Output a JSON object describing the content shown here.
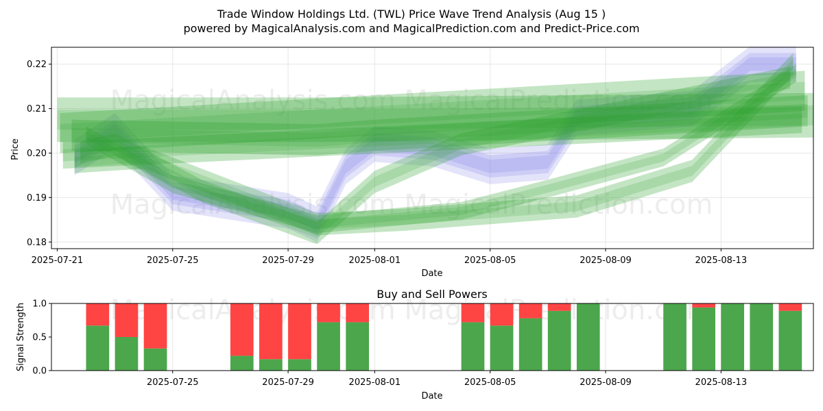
{
  "title_line1": "Trade Window Holdings Ltd. (TWL) Price Wave Trend Analysis (Aug 15 )",
  "title_line2": "powered by MagicalAnalysis.com and MagicalPrediction.com and Predict-Price.com",
  "watermark": "MagicalAnalysis.com    MagicalPrediction.com",
  "colors": {
    "price_band": "#8080e6",
    "wave": "#2ca02c",
    "buy": "#4ca64c",
    "sell": "#ff4444",
    "grid": "#e6e6e6"
  },
  "chart_data": [
    {
      "type": "area",
      "title": "",
      "xlabel": "Date",
      "ylabel": "Price",
      "ylim": [
        0.1785,
        0.2238
      ],
      "xlim_day": [
        -0.2,
        26.2
      ],
      "x_tick_labels": [
        "2025-07-21",
        "2025-07-25",
        "2025-07-29",
        "2025-08-01",
        "2025-08-05",
        "2025-08-09",
        "2025-08-13"
      ],
      "x_tick_days": [
        0,
        4,
        8,
        11,
        15,
        19,
        23
      ],
      "y_ticks": [
        0.18,
        0.19,
        0.2,
        0.21,
        0.22
      ],
      "y_tick_labels": [
        "0.18",
        "0.19",
        "0.20",
        "0.21",
        "0.22"
      ],
      "price_series": {
        "name": "Price",
        "days": [
          0.6,
          2,
          4,
          6,
          8,
          9,
          10,
          11,
          13,
          15,
          17,
          18,
          20,
          22,
          24,
          25.6
        ],
        "values": [
          0.199,
          0.205,
          0.191,
          0.189,
          0.187,
          0.184,
          0.197,
          0.202,
          0.201,
          0.197,
          0.198,
          0.208,
          0.209,
          0.21,
          0.22,
          0.22
        ]
      },
      "wave_bands": [
        {
          "x": [
            0,
            9,
            26.2
          ],
          "y": [
            0.2075,
            0.2075,
            0.2085
          ],
          "half_width": 0.005
        },
        {
          "x": [
            0.1,
            25.9
          ],
          "y": [
            0.2045,
            0.214
          ],
          "half_width": 0.0045
        },
        {
          "x": [
            0.2,
            25.8
          ],
          "y": [
            0.1995,
            0.2075
          ],
          "half_width": 0.003
        },
        {
          "x": [
            0.5,
            9,
            11,
            26
          ],
          "y": [
            0.204,
            0.203,
            0.204,
            0.2095
          ],
          "half_width": 0.0035
        },
        {
          "x": [
            1,
            4,
            9,
            14,
            17,
            21,
            25.6
          ],
          "y": [
            0.204,
            0.193,
            0.184,
            0.187,
            0.192,
            0.199,
            0.218
          ],
          "half_width": 0.002
        },
        {
          "x": [
            0.8,
            2,
            5,
            9,
            11,
            14,
            25.4
          ],
          "y": [
            0.2,
            0.202,
            0.1915,
            0.182,
            0.1935,
            0.202,
            0.217
          ],
          "half_width": 0.0025
        },
        {
          "x": [
            0.6,
            3,
            9,
            12,
            18,
            22,
            25.5
          ],
          "y": [
            0.198,
            0.199,
            0.184,
            0.185,
            0.188,
            0.196,
            0.22
          ],
          "half_width": 0.0025
        }
      ]
    },
    {
      "type": "bar",
      "title": "Buy and Sell Powers",
      "xlabel": "Date",
      "ylabel": "Signal Strength",
      "ylim": [
        0,
        1.0
      ],
      "xlim_day": [
        -0.2,
        26.2
      ],
      "x_tick_labels": [
        "2025-07-25",
        "2025-07-29",
        "2025-08-01",
        "2025-08-05",
        "2025-08-09",
        "2025-08-13"
      ],
      "x_tick_days": [
        4,
        8,
        11,
        15,
        19,
        23
      ],
      "y_ticks": [
        0,
        0.5,
        1.0
      ],
      "y_tick_labels": [
        "0.0",
        "0.5",
        "1.0"
      ],
      "bar_days": [
        1.4,
        2.4,
        3.4,
        6.4,
        7.4,
        8.4,
        9.4,
        10.4,
        14.4,
        15.4,
        16.4,
        17.4,
        18.4,
        21.4,
        22.4,
        23.4,
        24.4,
        25.4
      ],
      "buy_values": [
        0.67,
        0.5,
        0.33,
        0.22,
        0.17,
        0.17,
        0.72,
        0.72,
        0.72,
        0.67,
        0.78,
        0.89,
        1.0,
        1.0,
        0.94,
        1.0,
        1.0,
        0.89
      ],
      "sell_values": [
        0.33,
        0.5,
        0.67,
        0.78,
        0.83,
        0.83,
        0.28,
        0.28,
        0.28,
        0.33,
        0.22,
        0.11,
        0.0,
        0.0,
        0.06,
        0.0,
        0.0,
        0.11
      ]
    }
  ]
}
